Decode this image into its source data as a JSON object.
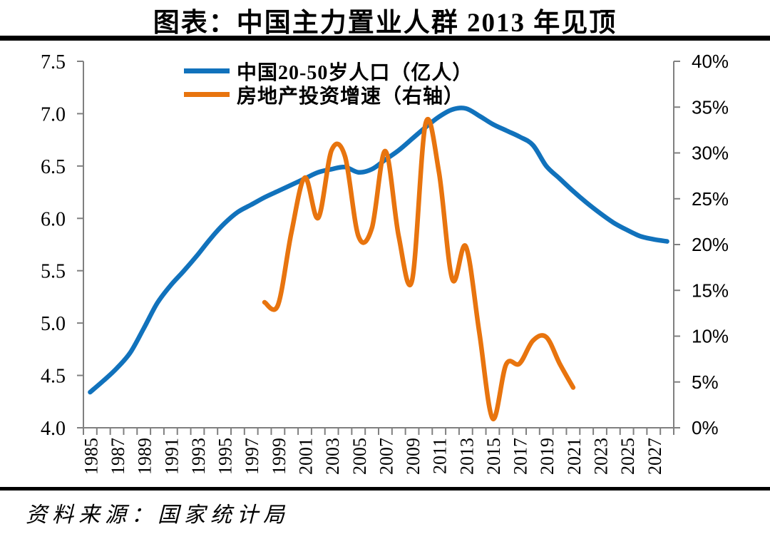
{
  "title": "图表：中国主力置业人群 2013 年见顶",
  "source_note": "资料来源：国家统计局",
  "colors": {
    "population_line": "#1172BC",
    "investment_line": "#E8740E",
    "axis": "#808080",
    "divider": "#000000",
    "text": "#000000"
  },
  "legend": {
    "items": [
      {
        "id": "population",
        "label": "中国20-50岁人口（亿人）"
      },
      {
        "id": "investment",
        "label": "房地产投资增速（右轴）"
      }
    ]
  },
  "chart_data": {
    "type": "line",
    "title": "图表：中国主力置业人群 2013 年见顶",
    "grid": false,
    "legend_position": "top-center",
    "x_axis": {
      "start_year": 1985,
      "end_year": 2028,
      "tick_label_years": [
        1985,
        1987,
        1989,
        1991,
        1993,
        1995,
        1997,
        1999,
        2001,
        2003,
        2005,
        2007,
        2009,
        2011,
        2013,
        2015,
        2017,
        2019,
        2021,
        2023,
        2025,
        2027
      ]
    },
    "left_axis": {
      "label": "中国20-50岁人口（亿人）",
      "range": [
        4.0,
        7.5
      ],
      "step": 0.5,
      "tick_labels": [
        "4.0",
        "4.5",
        "5.0",
        "5.5",
        "6.0",
        "6.5",
        "7.0",
        "7.5"
      ]
    },
    "right_axis": {
      "label": "房地产投资增速",
      "range": [
        0,
        40
      ],
      "step": 5,
      "tick_labels": [
        "0%",
        "5%",
        "10%",
        "15%",
        "20%",
        "25%",
        "30%",
        "35%",
        "40%"
      ]
    },
    "series": [
      {
        "name": "中国20-50岁人口（亿人）",
        "axis": "left",
        "color_key": "population_line",
        "smooth": true,
        "points": [
          [
            1985,
            4.34
          ],
          [
            1986,
            4.45
          ],
          [
            1987,
            4.57
          ],
          [
            1988,
            4.72
          ],
          [
            1989,
            4.95
          ],
          [
            1990,
            5.19
          ],
          [
            1991,
            5.36
          ],
          [
            1992,
            5.5
          ],
          [
            1993,
            5.65
          ],
          [
            1994,
            5.81
          ],
          [
            1995,
            5.95
          ],
          [
            1996,
            6.06
          ],
          [
            1997,
            6.13
          ],
          [
            1998,
            6.2
          ],
          [
            1999,
            6.26
          ],
          [
            2000,
            6.32
          ],
          [
            2001,
            6.38
          ],
          [
            2002,
            6.44
          ],
          [
            2003,
            6.47
          ],
          [
            2004,
            6.49
          ],
          [
            2005,
            6.44
          ],
          [
            2006,
            6.47
          ],
          [
            2007,
            6.56
          ],
          [
            2008,
            6.65
          ],
          [
            2009,
            6.76
          ],
          [
            2010,
            6.87
          ],
          [
            2011,
            6.97
          ],
          [
            2012,
            7.04
          ],
          [
            2013,
            7.05
          ],
          [
            2014,
            6.98
          ],
          [
            2015,
            6.9
          ],
          [
            2016,
            6.84
          ],
          [
            2017,
            6.78
          ],
          [
            2018,
            6.7
          ],
          [
            2019,
            6.5
          ],
          [
            2020,
            6.38
          ],
          [
            2021,
            6.26
          ],
          [
            2022,
            6.15
          ],
          [
            2023,
            6.05
          ],
          [
            2024,
            5.96
          ],
          [
            2025,
            5.89
          ],
          [
            2026,
            5.83
          ],
          [
            2027,
            5.8
          ],
          [
            2028,
            5.78
          ]
        ]
      },
      {
        "name": "房地产投资增速（右轴）",
        "axis": "right",
        "color_key": "investment_line",
        "smooth": true,
        "points": [
          [
            1998,
            13.7
          ],
          [
            1999,
            13.4
          ],
          [
            2000,
            21.3
          ],
          [
            2001,
            27.3
          ],
          [
            2002,
            22.9
          ],
          [
            2003,
            30.3
          ],
          [
            2004,
            29.6
          ],
          [
            2005,
            20.9
          ],
          [
            2006,
            21.8
          ],
          [
            2007,
            30.2
          ],
          [
            2008,
            20.9
          ],
          [
            2009,
            16.1
          ],
          [
            2010,
            33.2
          ],
          [
            2011,
            27.9
          ],
          [
            2012,
            16.2
          ],
          [
            2013,
            19.8
          ],
          [
            2014,
            10.5
          ],
          [
            2015,
            1.0
          ],
          [
            2016,
            6.9
          ],
          [
            2017,
            7.0
          ],
          [
            2018,
            9.5
          ],
          [
            2019,
            9.9
          ],
          [
            2020,
            7.0
          ],
          [
            2021,
            4.4
          ]
        ]
      }
    ]
  }
}
